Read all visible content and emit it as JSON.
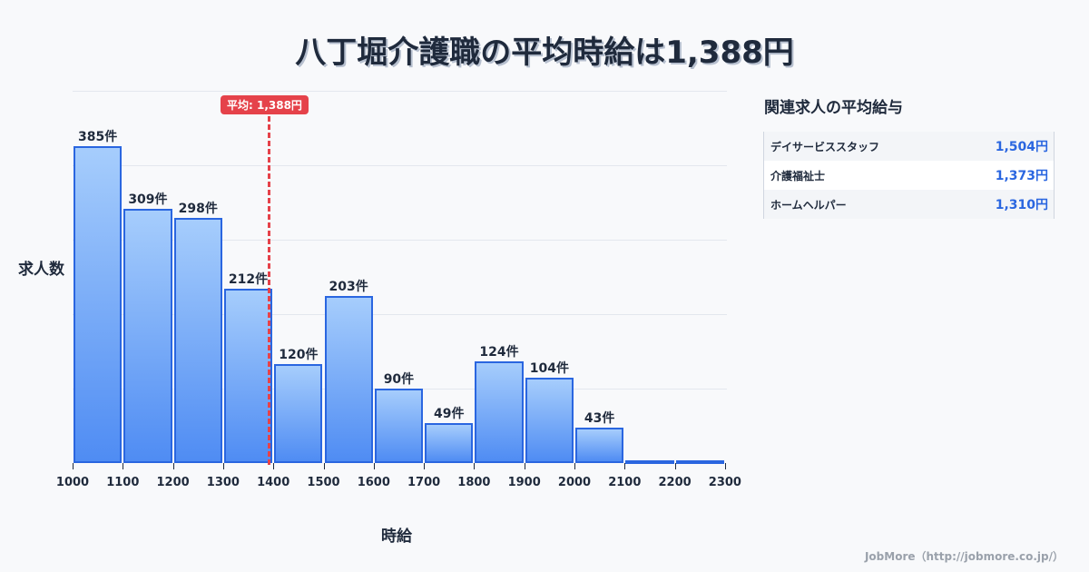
{
  "title": "八丁堀介護職の平均時給は1,388円",
  "average_badge": "平均: 1,388円",
  "y_axis_label": "求人数",
  "x_axis_label": "時給",
  "sidebar": {
    "title": "関連求人の平均給与",
    "rows": [
      {
        "name": "デイサービススタッフ",
        "value": "1,504円"
      },
      {
        "name": "介護福祉士",
        "value": "1,373円"
      },
      {
        "name": "ホームヘルパー",
        "value": "1,310円"
      }
    ]
  },
  "footer": "JobMore（http://jobmore.co.jp/）",
  "colors": {
    "bar_border": "#2a66e0",
    "bar_top": "#a6cdfc",
    "bar_bottom": "#4f8cf3",
    "average_line": "#e5424a",
    "title_text": "#1f2a3c",
    "value_text": "#2a66e0"
  },
  "chart_data": {
    "type": "bar",
    "title": "八丁堀介護職の平均時給は1,388円",
    "xlabel": "時給",
    "ylabel": "求人数",
    "x_ticks": [
      "1000",
      "1100",
      "1200",
      "1300",
      "1400",
      "1500",
      "1600",
      "1700",
      "1800",
      "1900",
      "2000",
      "2100",
      "2200",
      "2300"
    ],
    "categories": [
      "1000-1100",
      "1100-1200",
      "1200-1300",
      "1300-1400",
      "1400-1500",
      "1500-1600",
      "1600-1700",
      "1700-1800",
      "1800-1900",
      "1900-2000",
      "2000-2100",
      "2100-2200",
      "2200-2300"
    ],
    "values": [
      385,
      309,
      298,
      212,
      120,
      203,
      90,
      49,
      124,
      104,
      43,
      3,
      1
    ],
    "labels": [
      "385件",
      "309件",
      "298件",
      "212件",
      "120件",
      "203件",
      "90件",
      "49件",
      "124件",
      "104件",
      "43件",
      "",
      ""
    ],
    "average": 1388,
    "average_label": "平均: 1,388円",
    "grid": true,
    "ylim": [
      0,
      453
    ]
  }
}
